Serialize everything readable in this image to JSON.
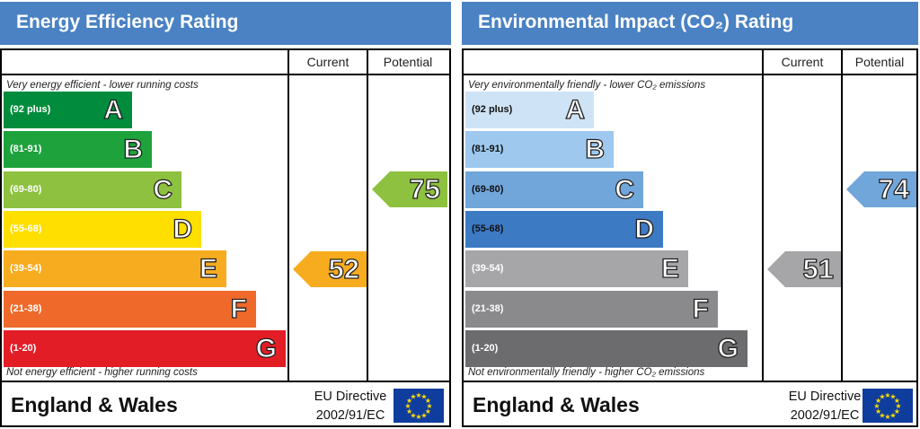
{
  "chart_data": [
    {
      "type": "bar",
      "title": "Energy Efficiency Rating",
      "columns": [
        "Current",
        "Potential"
      ],
      "top_note": "Very energy efficient - lower running costs",
      "bottom_note": "Not energy efficient - higher running costs",
      "bands": [
        {
          "range": "(92 plus)",
          "letter": "A",
          "color": "#008c3c"
        },
        {
          "range": "(81-91)",
          "letter": "B",
          "color": "#1da23c"
        },
        {
          "range": "(69-80)",
          "letter": "C",
          "color": "#8dc13f"
        },
        {
          "range": "(55-68)",
          "letter": "D",
          "color": "#ffdf00"
        },
        {
          "range": "(39-54)",
          "letter": "E",
          "color": "#f7ac20"
        },
        {
          "range": "(21-38)",
          "letter": "F",
          "color": "#ef6a2a"
        },
        {
          "range": "(1-20)",
          "letter": "G",
          "color": "#e31d26"
        }
      ],
      "current": {
        "value": "52",
        "band": "E",
        "color": "#f7ac20"
      },
      "potential": {
        "value": "75",
        "band": "C",
        "color": "#8dc13f"
      },
      "footer": {
        "region": "England & Wales",
        "directive_line1": "EU Directive",
        "directive_line2": "2002/91/EC"
      }
    },
    {
      "type": "bar",
      "title": "Environmental Impact (CO₂) Rating",
      "columns": [
        "Current",
        "Potential"
      ],
      "top_note": "Very environmentally friendly - lower CO₂ emissions",
      "bottom_note": "Not environmentally friendly - higher CO₂ emissions",
      "bands": [
        {
          "range": "(92 plus)",
          "letter": "A",
          "color": "#cfe3f6"
        },
        {
          "range": "(81-91)",
          "letter": "B",
          "color": "#9ec8ee"
        },
        {
          "range": "(69-80)",
          "letter": "C",
          "color": "#71a6db"
        },
        {
          "range": "(55-68)",
          "letter": "D",
          "color": "#3d7ac4"
        },
        {
          "range": "(39-54)",
          "letter": "E",
          "color": "#a6a6a8"
        },
        {
          "range": "(21-38)",
          "letter": "F",
          "color": "#8a8a8c"
        },
        {
          "range": "(1-20)",
          "letter": "G",
          "color": "#6c6c6e"
        }
      ],
      "current": {
        "value": "51",
        "band": "E",
        "color": "#a6a6a8"
      },
      "potential": {
        "value": "74",
        "band": "C",
        "color": "#71a6db"
      },
      "footer": {
        "region": "England & Wales",
        "directive_line1": "EU Directive",
        "directive_line2": "2002/91/EC"
      }
    }
  ]
}
